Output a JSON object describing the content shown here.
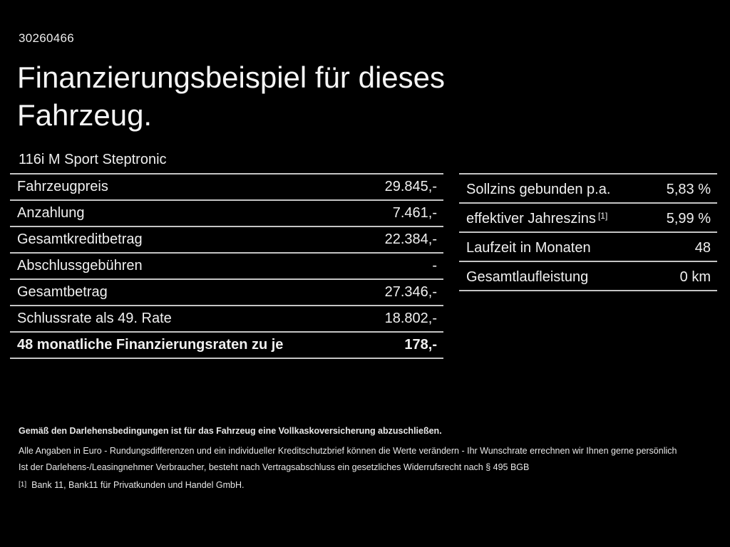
{
  "colors": {
    "background": "#000000",
    "text": "#f2f2f2",
    "divider": "#c4c4c4"
  },
  "header": {
    "doc_number": "30260466",
    "title": "Finanzierungsbeispiel für dieses Fahrzeug.",
    "vehicle_model": "116i M Sport Steptronic"
  },
  "finance_table": {
    "rows": [
      {
        "label": "Fahrzeugpreis",
        "value": "29.845,-"
      },
      {
        "label": "Anzahlung",
        "value": "7.461,-"
      },
      {
        "label": "Gesamtkreditbetrag",
        "value": "22.384,-"
      },
      {
        "label": "Abschlussgebühren",
        "value": "-"
      },
      {
        "label": "Gesamtbetrag",
        "value": "27.346,-"
      },
      {
        "label": "Schlussrate als 49. Rate",
        "value": "18.802,-"
      },
      {
        "label": "48 monatliche Finanzierungsraten zu je",
        "value": "178,-"
      }
    ]
  },
  "conditions_table": {
    "rows": [
      {
        "label": "Sollzins gebunden p.a.",
        "sup": "",
        "value": "5,83 %"
      },
      {
        "label": "effektiver Jahreszins",
        "sup": "[1]",
        "value": "5,99 %"
      },
      {
        "label": "Laufzeit in Monaten",
        "sup": "",
        "value": "48"
      },
      {
        "label": "Gesamtlaufleistung",
        "sup": "",
        "value": "0 km"
      }
    ]
  },
  "footer": {
    "insurance_note": "Gemäß den Darlehensbedingungen ist für das Fahrzeug eine Vollkaskoversicherung abzuschließen.",
    "disclaimer_line1": "Alle Angaben in Euro - Rundungsdifferenzen und ein individueller Kreditschutzbrief können die Werte verändern - Ihr Wunschrate errechnen wir Ihnen gerne persönlich",
    "disclaimer_line2": "Ist der Darlehens-/Leasingnehmer Verbraucher, besteht nach Vertragsabschluss ein gesetzliches Widerrufsrecht nach § 495 BGB",
    "footnote_marker": "[1]",
    "footnote_text": "Bank 11, Bank11 für Privatkunden und Handel GmbH."
  }
}
